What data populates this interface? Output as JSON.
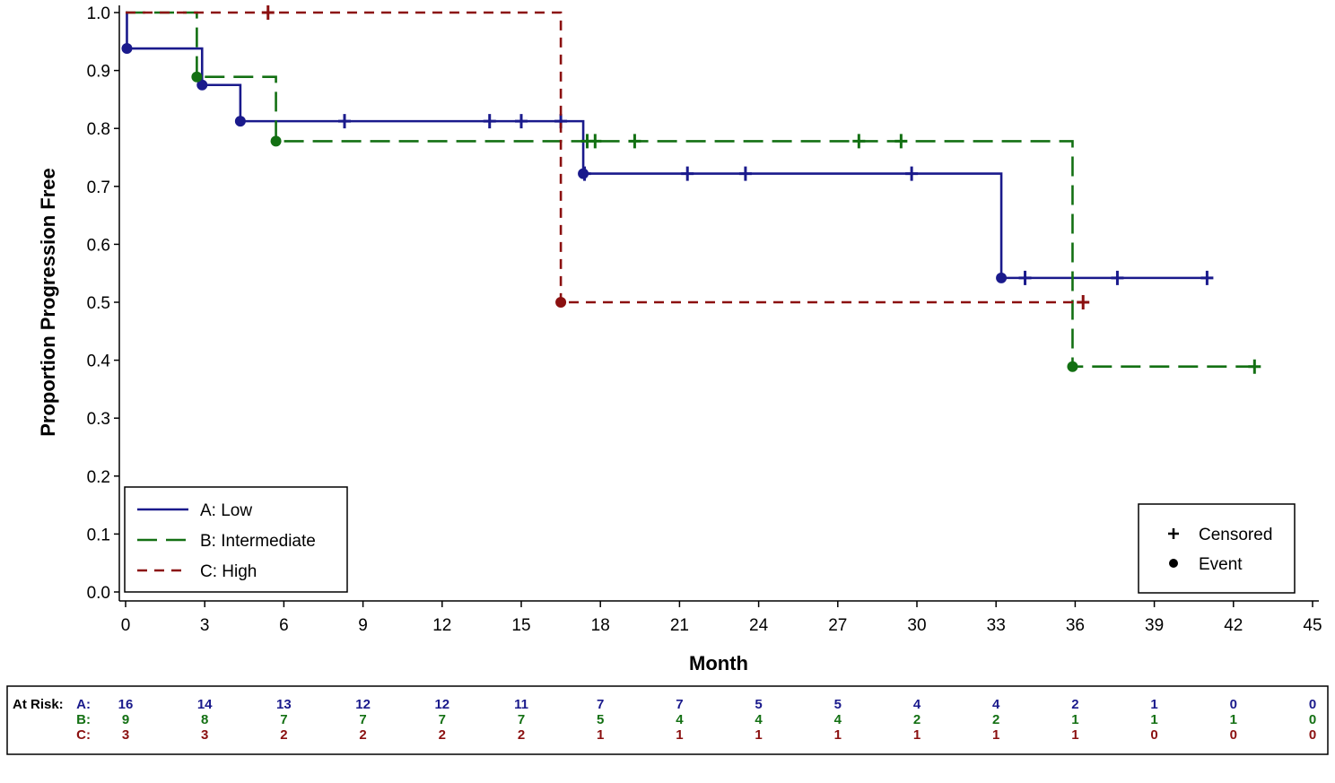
{
  "chart_data": {
    "type": "line",
    "subtype": "kaplan-meier step",
    "xlabel": "Month",
    "ylabel": "Proportion Progression Free",
    "xlim": [
      0,
      45
    ],
    "ylim": [
      0,
      1.0
    ],
    "x_ticks": [
      0,
      3,
      6,
      9,
      12,
      15,
      18,
      21,
      24,
      27,
      30,
      33,
      36,
      39,
      42,
      45
    ],
    "y_ticks": [
      0.0,
      0.1,
      0.2,
      0.3,
      0.4,
      0.5,
      0.6,
      0.7,
      0.8,
      0.9,
      1.0
    ],
    "y_tick_labels": [
      "0.0",
      "0.1",
      "0.2",
      "0.3",
      "0.4",
      "0.5",
      "0.6",
      "0.7",
      "0.8",
      "0.9",
      "1.0"
    ],
    "grid": false,
    "series": [
      {
        "name": "A: Low",
        "risk_label": "A:",
        "color": "#1a1a8c",
        "style": "solid",
        "step_x": [
          0,
          0.05,
          2.9,
          4.35,
          17.35,
          33.2,
          41
        ],
        "step_y": [
          1.0,
          0.938,
          0.875,
          0.8125,
          0.722,
          0.542,
          0.542
        ],
        "events": [
          [
            0.05,
            0.938
          ],
          [
            2.9,
            0.875
          ],
          [
            4.35,
            0.8125
          ],
          [
            17.35,
            0.722
          ],
          [
            33.2,
            0.542
          ]
        ],
        "censored": [
          [
            8.3,
            0.8125
          ],
          [
            13.8,
            0.8125
          ],
          [
            15.0,
            0.8125
          ],
          [
            16.5,
            0.8125
          ],
          [
            17.4,
            0.722
          ],
          [
            21.3,
            0.722
          ],
          [
            23.5,
            0.722
          ],
          [
            29.8,
            0.722
          ],
          [
            34.1,
            0.542
          ],
          [
            37.6,
            0.542
          ],
          [
            41,
            0.542
          ]
        ],
        "at_risk": [
          16,
          14,
          13,
          12,
          12,
          11,
          7,
          7,
          5,
          5,
          4,
          4,
          2,
          1,
          0,
          0
        ]
      },
      {
        "name": "B: Intermediate",
        "risk_label": "B:",
        "color": "#137013",
        "style": "long-dash",
        "step_x": [
          0,
          2.7,
          5.7,
          35.9,
          42.8
        ],
        "step_y": [
          1.0,
          0.889,
          0.778,
          0.389,
          0.389
        ],
        "events": [
          [
            2.7,
            0.889
          ],
          [
            5.7,
            0.778
          ],
          [
            35.9,
            0.389
          ]
        ],
        "censored": [
          [
            17.5,
            0.778
          ],
          [
            17.8,
            0.778
          ],
          [
            19.3,
            0.778
          ],
          [
            27.8,
            0.778
          ],
          [
            29.4,
            0.778
          ],
          [
            42.8,
            0.389
          ]
        ],
        "at_risk": [
          9,
          8,
          7,
          7,
          7,
          7,
          5,
          4,
          4,
          4,
          2,
          2,
          1,
          1,
          1,
          0
        ]
      },
      {
        "name": "C: High",
        "risk_label": "C:",
        "color": "#8b1010",
        "style": "short-dash",
        "step_x": [
          0,
          16.5,
          36.3
        ],
        "step_y": [
          1.0,
          0.5,
          0.5
        ],
        "events": [
          [
            16.5,
            0.5
          ]
        ],
        "censored": [
          [
            5.4,
            1.0
          ],
          [
            36.3,
            0.5
          ]
        ],
        "at_risk": [
          3,
          3,
          2,
          2,
          2,
          2,
          1,
          1,
          1,
          1,
          1,
          1,
          1,
          0,
          0,
          0
        ]
      }
    ],
    "legend_placement": "bottom-left",
    "marker_legend": {
      "placement": "bottom-right",
      "items": [
        {
          "symbol": "+",
          "label": "Censored"
        },
        {
          "symbol": "●",
          "label": "Event"
        }
      ]
    },
    "at_risk_table": {
      "title": "At Risk:"
    }
  }
}
